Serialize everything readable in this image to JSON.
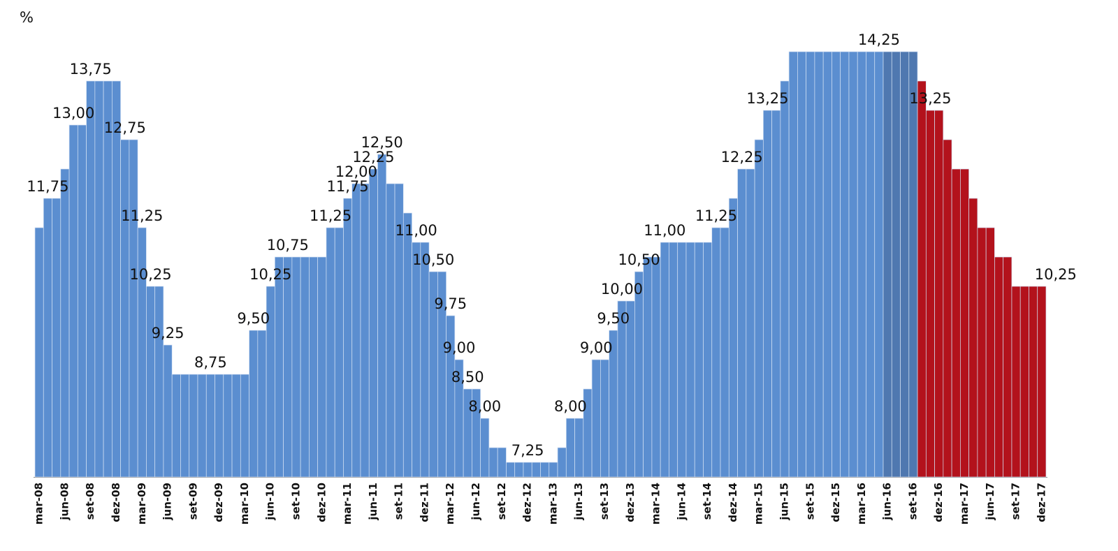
{
  "chart_data": {
    "type": "bar",
    "y_label": "%",
    "ylim": [
      7,
      15
    ],
    "categories": [
      "mar-08",
      null,
      null,
      "jun-08",
      null,
      null,
      "set-08",
      null,
      null,
      "dez-08",
      null,
      null,
      "mar-09",
      null,
      null,
      "jun-09",
      null,
      null,
      "set-09",
      null,
      null,
      "dez-09",
      null,
      null,
      "mar-10",
      null,
      null,
      "jun-10",
      null,
      null,
      "set-10",
      null,
      null,
      "dez-10",
      null,
      null,
      "mar-11",
      null,
      null,
      "jun-11",
      null,
      null,
      "set-11",
      null,
      null,
      "dez-11",
      null,
      null,
      "mar-12",
      null,
      null,
      "jun-12",
      null,
      null,
      "set-12",
      null,
      null,
      "dez-12",
      null,
      null,
      "mar-13",
      null,
      null,
      "jun-13",
      null,
      null,
      "set-13",
      null,
      null,
      "dez-13",
      null,
      null,
      "mar-14",
      null,
      null,
      "jun-14",
      null,
      null,
      "set-14",
      null,
      null,
      "dez-14",
      null,
      null,
      "mar-15",
      null,
      null,
      "jun-15",
      null,
      null,
      "set-15",
      null,
      null,
      "dez-15",
      null,
      null,
      "mar-16",
      null,
      null,
      "jun-16",
      null,
      null,
      "set-16",
      null,
      null,
      "dez-16",
      null,
      null,
      "mar-17",
      null,
      null,
      "jun-17",
      null,
      null,
      "set-17",
      null,
      null,
      "dez-17"
    ],
    "values": [
      11.25,
      11.75,
      11.75,
      12.25,
      13,
      13,
      13.75,
      13.75,
      13.75,
      13.75,
      12.75,
      12.75,
      11.25,
      10.25,
      10.25,
      9.25,
      8.75,
      8.75,
      8.75,
      8.75,
      8.75,
      8.75,
      8.75,
      8.75,
      8.75,
      9.5,
      9.5,
      10.25,
      10.75,
      10.75,
      10.75,
      10.75,
      10.75,
      10.75,
      11.25,
      11.25,
      11.75,
      12,
      12,
      12.25,
      12.5,
      12,
      12,
      11.5,
      11,
      11,
      10.5,
      10.5,
      9.75,
      9,
      8.5,
      8.5,
      8,
      7.5,
      7.5,
      7.25,
      7.25,
      7.25,
      7.25,
      7.25,
      7.25,
      7.5,
      8,
      8,
      8.5,
      9,
      9,
      9.5,
      10,
      10,
      10.5,
      10.75,
      10.75,
      11,
      11,
      11,
      11,
      11,
      11,
      11.25,
      11.25,
      11.75,
      12.25,
      12.25,
      12.75,
      13.25,
      13.25,
      13.75,
      14.25,
      14.25,
      14.25,
      14.25,
      14.25,
      14.25,
      14.25,
      14.25,
      14.25,
      14.25,
      14.25,
      14.25,
      14.25,
      14.25,
      14.25,
      13.75,
      13.25,
      13.25,
      12.75,
      12.25,
      12.25,
      11.75,
      11.25,
      11.25,
      10.75,
      10.75,
      10.25,
      10.25,
      10.25,
      10.25
    ],
    "value_labels": [
      null,
      "11,75",
      null,
      null,
      "13,00",
      null,
      "13,75",
      null,
      null,
      null,
      "12,75",
      null,
      "11,25",
      "10,25",
      null,
      "9,25",
      null,
      null,
      null,
      null,
      "8,75",
      null,
      null,
      null,
      null,
      "9,50",
      null,
      "10,25",
      null,
      "10,75",
      null,
      null,
      null,
      null,
      "11,25",
      null,
      "11,75",
      "12,00",
      null,
      "12,25",
      "12,50",
      null,
      null,
      null,
      "11,00",
      null,
      "10,50",
      null,
      "9,75",
      "9,00",
      "8,50",
      null,
      "8,00",
      null,
      null,
      null,
      null,
      "7,25",
      null,
      null,
      null,
      null,
      "8,00",
      null,
      null,
      "9,00",
      null,
      "9,50",
      "10,00",
      null,
      "10,50",
      null,
      null,
      "11,00",
      null,
      null,
      null,
      null,
      null,
      "11,25",
      null,
      null,
      "12,25",
      null,
      null,
      "13,25",
      null,
      null,
      null,
      null,
      null,
      null,
      null,
      null,
      null,
      null,
      null,
      null,
      "14,25",
      null,
      null,
      null,
      null,
      null,
      "13,25",
      null,
      null,
      null,
      null,
      null,
      null,
      null,
      null,
      null,
      null,
      null,
      null,
      "10,25"
    ],
    "colors": [
      "#5b8ed0",
      "#5b8ed0",
      "#5b8ed0",
      "#5b8ed0",
      "#5b8ed0",
      "#5b8ed0",
      "#5b8ed0",
      "#5b8ed0",
      "#5b8ed0",
      "#5b8ed0",
      "#5b8ed0",
      "#5b8ed0",
      "#5b8ed0",
      "#5b8ed0",
      "#5b8ed0",
      "#5b8ed0",
      "#5b8ed0",
      "#5b8ed0",
      "#5b8ed0",
      "#5b8ed0",
      "#5b8ed0",
      "#5b8ed0",
      "#5b8ed0",
      "#5b8ed0",
      "#5b8ed0",
      "#5b8ed0",
      "#5b8ed0",
      "#5b8ed0",
      "#5b8ed0",
      "#5b8ed0",
      "#5b8ed0",
      "#5b8ed0",
      "#5b8ed0",
      "#5b8ed0",
      "#5b8ed0",
      "#5b8ed0",
      "#5b8ed0",
      "#5b8ed0",
      "#5b8ed0",
      "#5b8ed0",
      "#5b8ed0",
      "#5b8ed0",
      "#5b8ed0",
      "#5b8ed0",
      "#5b8ed0",
      "#5b8ed0",
      "#5b8ed0",
      "#5b8ed0",
      "#5b8ed0",
      "#5b8ed0",
      "#5b8ed0",
      "#5b8ed0",
      "#5b8ed0",
      "#5b8ed0",
      "#5b8ed0",
      "#5b8ed0",
      "#5b8ed0",
      "#5b8ed0",
      "#5b8ed0",
      "#5b8ed0",
      "#5b8ed0",
      "#5b8ed0",
      "#5b8ed0",
      "#5b8ed0",
      "#5b8ed0",
      "#5b8ed0",
      "#5b8ed0",
      "#5b8ed0",
      "#5b8ed0",
      "#5b8ed0",
      "#5b8ed0",
      "#5b8ed0",
      "#5b8ed0",
      "#5b8ed0",
      "#5b8ed0",
      "#5b8ed0",
      "#5b8ed0",
      "#5b8ed0",
      "#5b8ed0",
      "#5b8ed0",
      "#5b8ed0",
      "#5b8ed0",
      "#5b8ed0",
      "#5b8ed0",
      "#5b8ed0",
      "#5b8ed0",
      "#5b8ed0",
      "#5b8ed0",
      "#5b8ed0",
      "#5b8ed0",
      "#5b8ed0",
      "#5b8ed0",
      "#5b8ed0",
      "#5b8ed0",
      "#5b8ed0",
      "#5b8ed0",
      "#5b8ed0",
      "#5b8ed0",
      "#5b8ed0",
      "#4f78b0",
      "#4f78b0",
      "#4f78b0",
      "#4f78b0",
      "#b3121c",
      "#b3121c",
      "#b3121c",
      "#b3121c",
      "#b3121c",
      "#b3121c",
      "#b3121c",
      "#b3121c",
      "#b3121c",
      "#b3121c",
      "#b3121c",
      "#b3121c",
      "#b3121c",
      "#b3121c",
      "#b3121c"
    ]
  }
}
